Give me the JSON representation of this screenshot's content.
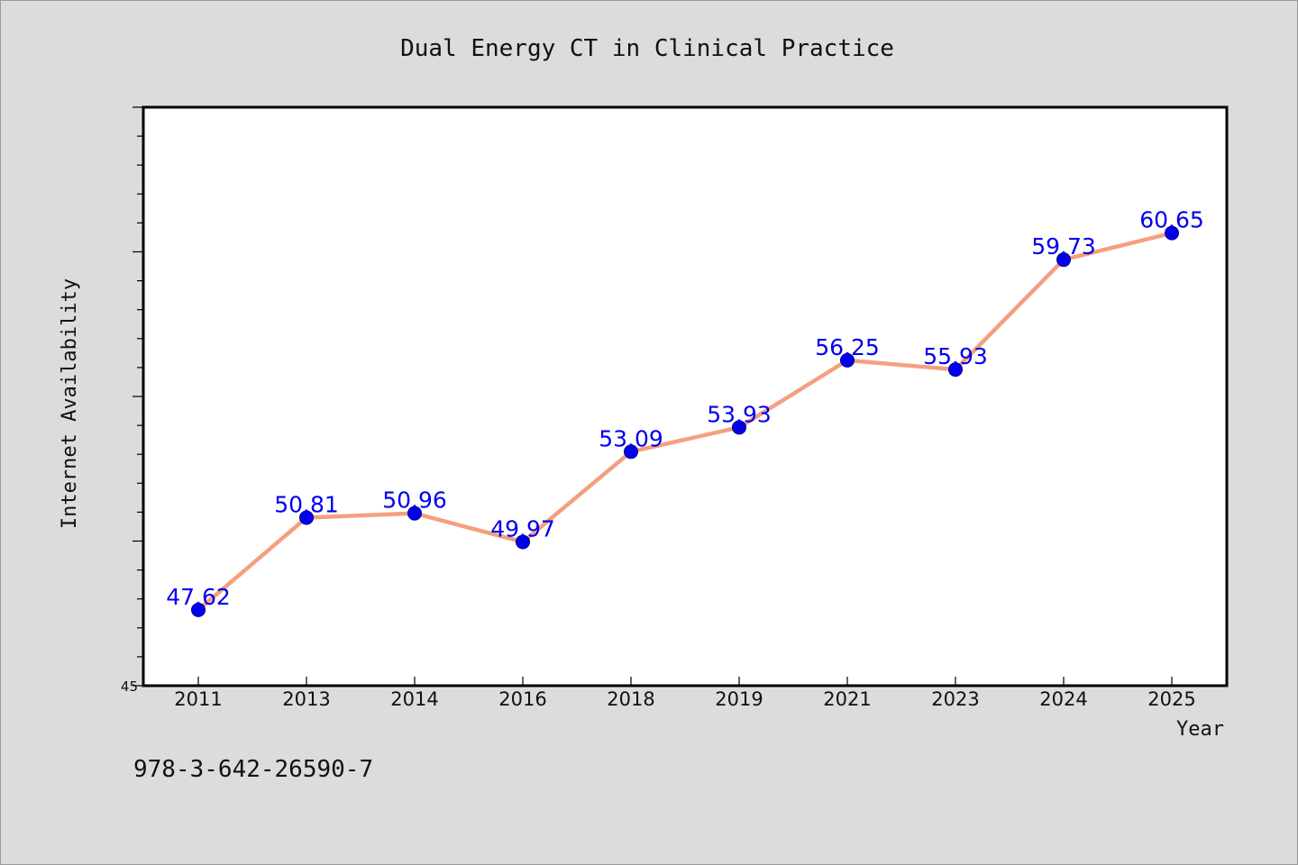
{
  "colors": {
    "background": "#dcdcdc",
    "plot_background": "#ffffff",
    "line": "#f4a07f",
    "marker": "#0000ee",
    "label": "#0000ee"
  },
  "chart_data": {
    "type": "line",
    "title": "Dual Energy CT in Clinical Practice",
    "xlabel": "Year",
    "ylabel": "Internet Availability",
    "categories": [
      "2011",
      "2013",
      "2014",
      "2016",
      "2018",
      "2019",
      "2021",
      "2023",
      "2024",
      "2025"
    ],
    "series": [
      {
        "values": [
          47.62,
          50.81,
          50.96,
          49.97,
          53.09,
          53.93,
          56.25,
          55.93,
          59.73,
          60.65
        ]
      }
    ],
    "data_labels": [
      "47.62",
      "50.81",
      "50.96",
      "49.97",
      "53.09",
      "53.93",
      "56.25",
      "55.93",
      "59.73",
      "60.65"
    ],
    "ylim": [
      45,
      65
    ],
    "y_tick_labels": [
      "45"
    ],
    "grid": false,
    "legend": "none"
  },
  "footnote": "978-3-642-26590-7"
}
